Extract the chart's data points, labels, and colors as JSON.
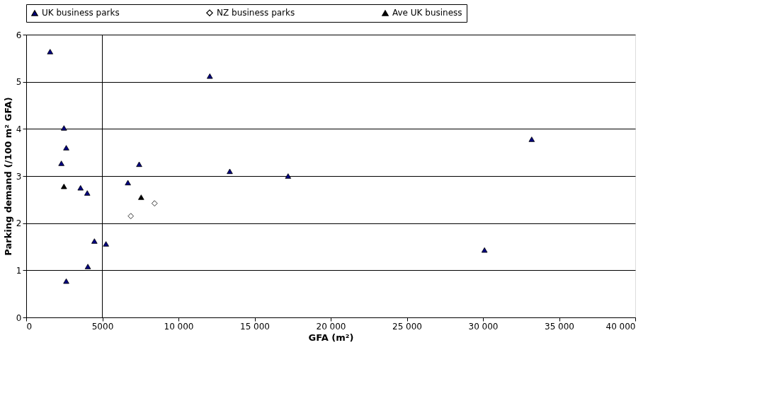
{
  "chart_data": {
    "type": "scatter",
    "xlabel": "GFA (m²)",
    "ylabel": "Parking demand (/100 m² GFA)",
    "xlim": [
      0,
      40000
    ],
    "xticks": [
      0,
      5000,
      {
        "value": 10000,
        "label": "10 000"
      },
      {
        "value": 15000,
        "label": "15 000"
      },
      {
        "value": 20000,
        "label": "20 000"
      },
      {
        "value": 25000,
        "label": "25 000"
      },
      {
        "value": 30000,
        "label": "30 000"
      },
      {
        "value": 35000,
        "label": "35 000"
      },
      {
        "value": 40000,
        "label": "40 000"
      }
    ],
    "ylim": [
      0,
      6
    ],
    "yticks": [
      0,
      1,
      2,
      3,
      4,
      5,
      6
    ],
    "grid": "y",
    "legend": "top",
    "ref_lines": [
      {
        "axis": "x",
        "value": 5000,
        "label": null,
        "color": "#000000"
      }
    ],
    "series": [
      {
        "name": "UK business parks",
        "color": "#000080",
        "marker": "triangle",
        "x": [
          1570,
          12060,
          2480,
          2630,
          2310,
          7420,
          13370,
          6680,
          3570,
          4010,
          4480,
          5240,
          4050,
          2630,
          17200,
          33200,
          30100
        ],
        "values": [
          5.64,
          5.12,
          4.02,
          3.6,
          3.27,
          3.25,
          3.1,
          2.86,
          2.75,
          2.64,
          1.62,
          1.56,
          1.08,
          0.77,
          3.0,
          3.78,
          1.43
        ]
      },
      {
        "name": "NZ business parks",
        "color": "#ffffff",
        "marker": "diamond",
        "x": [
          8430,
          6870
        ],
        "values": [
          2.42,
          2.15
        ]
      },
      {
        "name": "Ave UK business",
        "color": "#000000",
        "marker": "triangle",
        "x": [
          2480,
          7550
        ],
        "values": [
          2.78,
          2.55
        ]
      }
    ]
  }
}
